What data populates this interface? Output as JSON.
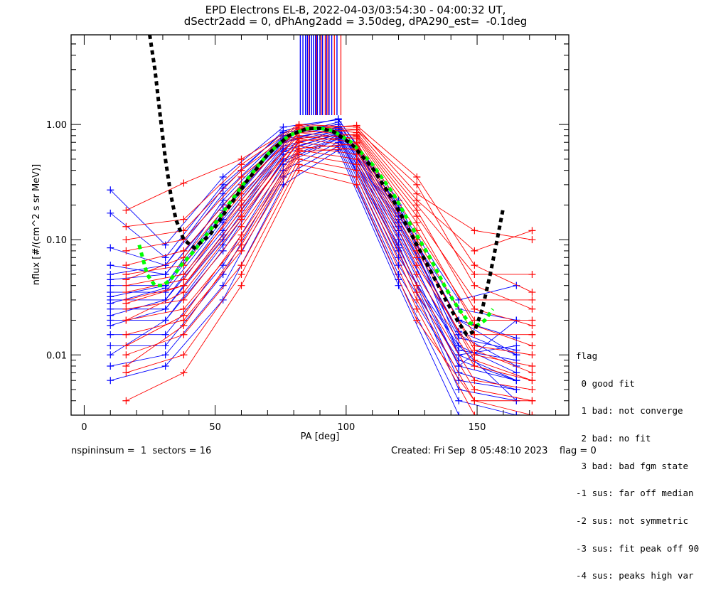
{
  "title": {
    "line1": "EPD Electrons EL-B, 2022-04-03/03:54:30 - 04:00:32 UT,",
    "line2": "dSectr2add = 0, dPhAng2add = 3.50deg, dPA290_est=  -0.1deg"
  },
  "footer": {
    "left": "nspininsum =  1  sectors = 16",
    "right": "Created: Fri Sep  8 05:48:10 2023    flag = 0"
  },
  "legend": {
    "title": "flag",
    "items": [
      " 0 good fit",
      " 1 bad: not converge",
      " 2 bad: no fit",
      " 3 bad: bad fgm state",
      "-1 sus: far off median",
      "-2 sus: not symmetric",
      "-3 sus: fit peak off 90",
      "-4 sus: peaks high var"
    ]
  },
  "colors": {
    "series_a": "#ff0000",
    "series_b": "#0000ff",
    "fit_green": "#00ff00",
    "fit_black": "#000000"
  },
  "chart_data": {
    "type": "line",
    "title": "EPD Electrons EL-B, 2022-04-03/03:54:30 - 04:00:32 UT,",
    "xlabel": "PA [deg]",
    "ylabel": "nflux [#/(cm^2 s sr MeV)]",
    "xlim": [
      -5,
      185
    ],
    "ylim": [
      0.003,
      6.0
    ],
    "yscale": "log",
    "xticks": [
      0,
      50,
      100,
      150
    ],
    "xtick_labels": [
      "0",
      "50",
      "100",
      "150"
    ],
    "yticks": [
      0.01,
      0.1,
      1.0
    ],
    "ytick_labels": [
      "0.01",
      "0.10",
      "1.00"
    ],
    "grid": false,
    "marker": "plus",
    "series_groups": [
      {
        "name": "blue spin sectors",
        "color": "blue",
        "pa": [
          10,
          31,
          53,
          76,
          97,
          120,
          143,
          165
        ],
        "series": [
          [
            0.27,
            0.09,
            0.35,
            0.95,
            1.1,
            0.22,
            0.012,
            0.004
          ],
          [
            0.17,
            0.07,
            0.3,
            0.85,
            1.0,
            0.2,
            0.01,
            0.006
          ],
          [
            0.085,
            0.06,
            0.25,
            0.8,
            0.95,
            0.18,
            0.02,
            0.01
          ],
          [
            0.06,
            0.05,
            0.2,
            0.75,
            0.9,
            0.15,
            0.015,
            0.008
          ],
          [
            0.04,
            0.04,
            0.18,
            0.7,
            0.88,
            0.12,
            0.01,
            0.012
          ],
          [
            0.035,
            0.035,
            0.15,
            0.65,
            0.85,
            0.1,
            0.008,
            0.02
          ],
          [
            0.03,
            0.03,
            0.12,
            0.6,
            0.82,
            0.09,
            0.006,
            0.005
          ],
          [
            0.025,
            0.025,
            0.1,
            0.55,
            0.8,
            0.08,
            0.005,
            0.004
          ],
          [
            0.02,
            0.02,
            0.08,
            0.5,
            0.78,
            0.07,
            0.012,
            0.007
          ],
          [
            0.015,
            0.015,
            0.06,
            0.45,
            0.75,
            0.06,
            0.009,
            0.006
          ],
          [
            0.012,
            0.012,
            0.05,
            0.4,
            0.7,
            0.05,
            0.007,
            0.005
          ],
          [
            0.008,
            0.01,
            0.04,
            0.35,
            0.65,
            0.045,
            0.004,
            0.003
          ],
          [
            0.006,
            0.008,
            0.03,
            0.3,
            0.6,
            0.04,
            0.003,
            0.003
          ],
          [
            0.022,
            0.03,
            0.14,
            0.62,
            0.9,
            0.14,
            0.016,
            0.01
          ],
          [
            0.032,
            0.04,
            0.22,
            0.78,
            1.05,
            0.17,
            0.02,
            0.014
          ],
          [
            0.05,
            0.06,
            0.28,
            0.88,
            1.12,
            0.19,
            0.03,
            0.04
          ],
          [
            0.018,
            0.025,
            0.11,
            0.58,
            0.84,
            0.11,
            0.011,
            0.009
          ],
          [
            0.01,
            0.02,
            0.09,
            0.48,
            0.76,
            0.085,
            0.008,
            0.006
          ],
          [
            0.028,
            0.038,
            0.17,
            0.7,
            0.95,
            0.13,
            0.014,
            0.011
          ],
          [
            0.045,
            0.05,
            0.2,
            0.72,
            0.93,
            0.16,
            0.025,
            0.02
          ]
        ]
      },
      {
        "name": "red spin sectors",
        "color": "red",
        "pa": [
          16,
          38,
          60,
          82,
          104,
          127,
          149,
          171
        ],
        "series": [
          [
            0.18,
            0.31,
            0.5,
            1.0,
            0.95,
            0.25,
            0.12,
            0.1
          ],
          [
            0.13,
            0.15,
            0.45,
            0.98,
            0.9,
            0.22,
            0.08,
            0.12
          ],
          [
            0.1,
            0.12,
            0.4,
            0.95,
            0.85,
            0.2,
            0.05,
            0.05
          ],
          [
            0.08,
            0.1,
            0.35,
            0.9,
            0.8,
            0.16,
            0.03,
            0.03
          ],
          [
            0.06,
            0.08,
            0.3,
            0.85,
            0.75,
            0.12,
            0.02,
            0.02
          ],
          [
            0.05,
            0.06,
            0.25,
            0.8,
            0.7,
            0.1,
            0.015,
            0.015
          ],
          [
            0.04,
            0.05,
            0.2,
            0.75,
            0.65,
            0.08,
            0.012,
            0.01
          ],
          [
            0.03,
            0.04,
            0.16,
            0.7,
            0.6,
            0.06,
            0.01,
            0.008
          ],
          [
            0.025,
            0.03,
            0.13,
            0.65,
            0.55,
            0.05,
            0.008,
            0.006
          ],
          [
            0.02,
            0.025,
            0.1,
            0.6,
            0.5,
            0.04,
            0.006,
            0.005
          ],
          [
            0.015,
            0.02,
            0.08,
            0.55,
            0.45,
            0.035,
            0.005,
            0.004
          ],
          [
            0.01,
            0.015,
            0.06,
            0.5,
            0.4,
            0.03,
            0.004,
            0.004
          ],
          [
            0.007,
            0.01,
            0.05,
            0.45,
            0.35,
            0.025,
            0.003,
            0.003
          ],
          [
            0.004,
            0.007,
            0.04,
            0.4,
            0.3,
            0.02,
            0.004,
            0.003
          ],
          [
            0.035,
            0.045,
            0.22,
            0.85,
            0.9,
            0.3,
            0.04,
            0.025
          ],
          [
            0.045,
            0.07,
            0.28,
            0.92,
            0.98,
            0.35,
            0.06,
            0.035
          ],
          [
            0.02,
            0.035,
            0.15,
            0.72,
            0.78,
            0.14,
            0.018,
            0.012
          ],
          [
            0.012,
            0.022,
            0.11,
            0.62,
            0.68,
            0.09,
            0.011,
            0.007
          ],
          [
            0.008,
            0.018,
            0.09,
            0.58,
            0.62,
            0.07,
            0.009,
            0.006
          ],
          [
            0.028,
            0.04,
            0.18,
            0.76,
            0.82,
            0.18,
            0.025,
            0.018
          ]
        ]
      }
    ],
    "fits": [
      {
        "name": "green dashed fit",
        "color": "green",
        "style": "dashed",
        "x": [
          21,
          24,
          27,
          30,
          33,
          37,
          42,
          48,
          55,
          62,
          70,
          78,
          85,
          90,
          95,
          102,
          110,
          118,
          125,
          132,
          138,
          143,
          147,
          150,
          153,
          156
        ],
        "y": [
          0.09,
          0.05,
          0.04,
          0.04,
          0.045,
          0.06,
          0.08,
          0.12,
          0.2,
          0.33,
          0.55,
          0.8,
          0.92,
          0.93,
          0.88,
          0.7,
          0.45,
          0.25,
          0.13,
          0.07,
          0.038,
          0.025,
          0.019,
          0.018,
          0.02,
          0.025
        ]
      },
      {
        "name": "black dashed fit",
        "color": "black",
        "style": "dashed",
        "x": [
          25,
          27,
          29,
          31,
          33,
          35,
          38,
          42,
          48,
          55,
          62,
          70,
          78,
          85,
          90,
          95,
          102,
          110,
          118,
          125,
          132,
          138,
          143,
          146,
          149,
          152,
          155,
          158,
          160
        ],
        "y": [
          6.0,
          3.0,
          1.2,
          0.5,
          0.25,
          0.15,
          0.1,
          0.085,
          0.11,
          0.19,
          0.32,
          0.55,
          0.8,
          0.92,
          0.93,
          0.87,
          0.68,
          0.42,
          0.22,
          0.11,
          0.055,
          0.03,
          0.019,
          0.015,
          0.016,
          0.025,
          0.05,
          0.11,
          0.19
        ]
      }
    ],
    "offscale_lines": {
      "note": "points above plot range drawn as vertical lines",
      "blue_pa": [
        82.5,
        83.5,
        84.5,
        85.2,
        86,
        86.8,
        87.5,
        88.3,
        89,
        90,
        91,
        92.5,
        93.5,
        94.5,
        96.5
      ],
      "red_pa": [
        85.8,
        88.7,
        90.5,
        92,
        93,
        95.5,
        98
      ]
    }
  }
}
